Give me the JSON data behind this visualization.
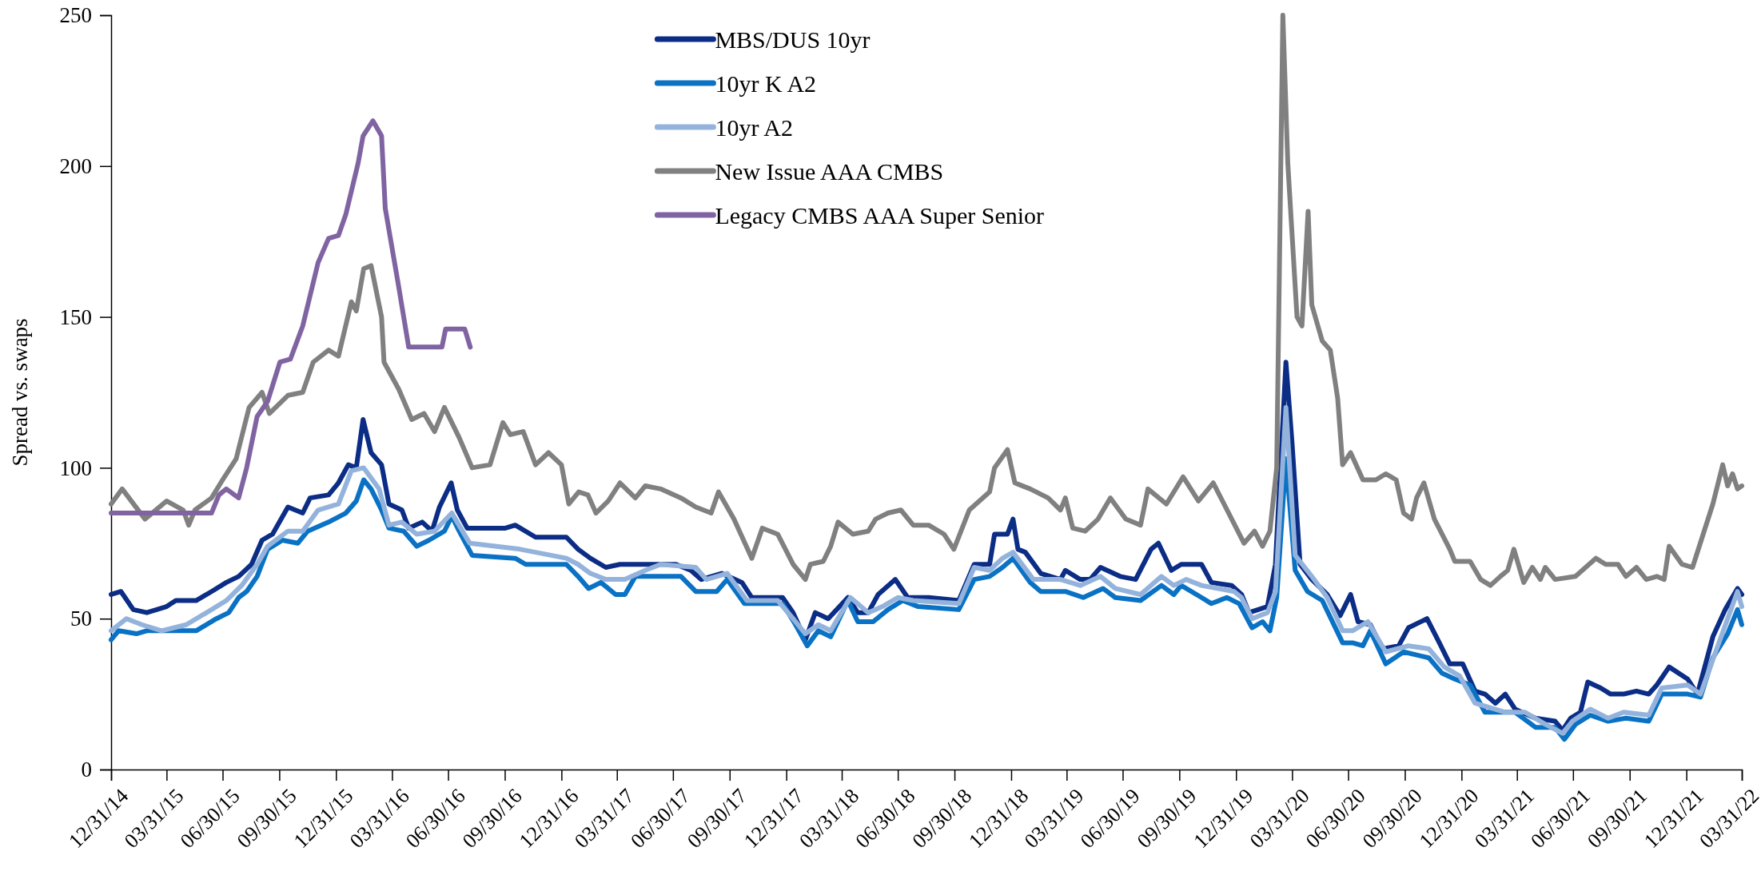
{
  "chart_data": {
    "type": "line",
    "ylabel": "Spread vs. swaps",
    "ylim": [
      0,
      250
    ],
    "yticks": [
      0,
      50,
      100,
      150,
      200,
      250
    ],
    "xlim": [
      "2014-12-31",
      "2022-03-31"
    ],
    "xticks": [
      {
        "value": "2014-12-31",
        "label": "12/31/14"
      },
      {
        "value": "2015-03-31",
        "label": "03/31/15"
      },
      {
        "value": "2015-06-30",
        "label": "06/30/15"
      },
      {
        "value": "2015-09-30",
        "label": "09/30/15"
      },
      {
        "value": "2015-12-31",
        "label": "12/31/15"
      },
      {
        "value": "2016-03-31",
        "label": "03/31/16"
      },
      {
        "value": "2016-06-30",
        "label": "06/30/16"
      },
      {
        "value": "2016-09-30",
        "label": "09/30/16"
      },
      {
        "value": "2016-12-31",
        "label": "12/31/16"
      },
      {
        "value": "2017-03-31",
        "label": "03/31/17"
      },
      {
        "value": "2017-06-30",
        "label": "06/30/17"
      },
      {
        "value": "2017-09-30",
        "label": "09/30/17"
      },
      {
        "value": "2017-12-31",
        "label": "12/31/17"
      },
      {
        "value": "2018-03-31",
        "label": "03/31/18"
      },
      {
        "value": "2018-06-30",
        "label": "06/30/18"
      },
      {
        "value": "2018-09-30",
        "label": "09/30/18"
      },
      {
        "value": "2018-12-31",
        "label": "12/31/18"
      },
      {
        "value": "2019-03-31",
        "label": "03/31/19"
      },
      {
        "value": "2019-06-30",
        "label": "06/30/19"
      },
      {
        "value": "2019-09-30",
        "label": "09/30/19"
      },
      {
        "value": "2019-12-31",
        "label": "12/31/19"
      },
      {
        "value": "2020-03-31",
        "label": "03/31/20"
      },
      {
        "value": "2020-06-30",
        "label": "06/30/20"
      },
      {
        "value": "2020-09-30",
        "label": "09/30/20"
      },
      {
        "value": "2020-12-31",
        "label": "12/31/20"
      },
      {
        "value": "2021-03-31",
        "label": "03/31/21"
      },
      {
        "value": "2021-06-30",
        "label": "06/30/21"
      },
      {
        "value": "2021-09-30",
        "label": "09/30/21"
      },
      {
        "value": "2021-12-31",
        "label": "12/31/21"
      },
      {
        "value": "2022-03-31",
        "label": "03/31/22"
      }
    ],
    "grid": false,
    "legend": "top",
    "marker": "none",
    "line_style": "solid",
    "series": [
      {
        "name": "MBS/DUS 10yr",
        "color": "#0b2d85",
        "x": [
          "2014-12-31",
          "2015-01-16",
          "2015-02-05",
          "2015-02-27",
          "2015-03-31",
          "2015-04-15",
          "2015-05-18",
          "2015-06-12",
          "2015-07-06",
          "2015-07-26",
          "2015-08-16",
          "2015-09-02",
          "2015-09-19",
          "2015-10-14",
          "2015-11-07",
          "2015-11-19",
          "2015-12-19",
          "2016-01-04",
          "2016-01-20",
          "2016-02-02",
          "2016-02-13",
          "2016-02-26",
          "2016-03-14",
          "2016-03-26",
          "2016-04-16",
          "2016-04-27",
          "2016-05-19",
          "2016-06-04",
          "2016-06-16",
          "2016-07-05",
          "2016-07-15",
          "2016-07-31",
          "2016-10-01",
          "2016-10-17",
          "2016-11-19",
          "2017-01-08",
          "2017-01-27",
          "2017-02-16",
          "2017-03-13",
          "2017-04-05",
          "2017-06-02",
          "2017-07-05",
          "2017-07-29",
          "2017-08-15",
          "2017-09-17",
          "2017-10-20",
          "2017-11-05",
          "2017-12-25",
          "2018-01-11",
          "2018-01-31",
          "2018-02-16",
          "2018-03-09",
          "2018-04-10",
          "2018-04-26",
          "2018-05-13",
          "2018-05-29",
          "2018-06-26",
          "2018-07-16",
          "2018-08-19",
          "2018-10-07",
          "2018-11-01",
          "2018-11-26",
          "2018-12-04",
          "2018-12-25",
          "2019-01-03",
          "2019-01-11",
          "2019-01-23",
          "2019-02-17",
          "2019-03-21",
          "2019-03-29",
          "2019-04-22",
          "2019-05-08",
          "2019-05-25",
          "2019-06-26",
          "2019-07-21",
          "2019-08-15",
          "2019-08-27",
          "2019-09-17",
          "2019-10-03",
          "2019-11-05",
          "2019-11-21",
          "2019-12-24",
          "2020-01-09",
          "2020-01-21",
          "2020-02-20",
          "2020-03-04",
          "2020-03-21",
          "2020-03-31",
          "2020-04-13",
          "2020-05-02",
          "2020-05-27",
          "2020-06-17",
          "2020-07-04",
          "2020-07-16",
          "2020-08-05",
          "2020-08-25",
          "2020-09-20",
          "2020-10-06",
          "2020-11-05",
          "2020-11-25",
          "2020-12-12",
          "2021-01-02",
          "2021-01-22",
          "2021-02-07",
          "2021-02-24",
          "2021-03-12",
          "2021-03-28",
          "2021-04-30",
          "2021-06-01",
          "2021-06-13",
          "2021-06-26",
          "2021-07-12",
          "2021-07-24",
          "2021-08-14",
          "2021-08-30",
          "2021-09-20",
          "2021-10-11",
          "2021-10-31",
          "2021-11-13",
          "2021-12-03",
          "2022-01-02",
          "2022-01-18",
          "2022-02-12",
          "2022-03-04",
          "2022-03-24",
          "2022-03-31"
        ],
        "values": [
          58,
          59,
          53,
          52,
          54,
          56,
          56,
          59,
          62,
          64,
          68,
          76,
          78,
          87,
          85,
          90,
          91,
          95,
          101,
          100,
          116,
          105,
          101,
          88,
          86,
          80,
          82,
          79,
          87,
          95,
          86,
          80,
          80,
          81,
          77,
          77,
          73,
          70,
          67,
          68,
          68,
          68,
          66,
          63,
          65,
          62,
          57,
          57,
          52,
          43,
          52,
          50,
          57,
          52,
          52,
          58,
          63,
          57,
          57,
          56,
          68,
          68,
          78,
          78,
          83,
          73,
          72,
          65,
          63,
          66,
          63,
          63,
          67,
          64,
          63,
          73,
          75,
          66,
          68,
          68,
          62,
          61,
          58,
          52,
          54,
          68,
          135,
          108,
          68,
          63,
          58,
          51,
          58,
          49,
          48,
          40,
          41,
          47,
          50,
          42,
          35,
          35,
          26,
          25,
          22,
          25,
          20,
          17,
          16,
          13,
          17,
          19,
          29,
          27,
          25,
          25,
          26,
          25,
          28,
          34,
          30,
          25,
          44,
          53,
          60,
          58
        ]
      },
      {
        "name": "10yr K A2",
        "color": "#0a72c4",
        "x": [
          "2014-12-31",
          "2015-01-12",
          "2015-02-10",
          "2015-02-27",
          "2015-05-18",
          "2015-06-20",
          "2015-07-10",
          "2015-07-26",
          "2015-08-08",
          "2015-08-25",
          "2015-09-11",
          "2015-10-05",
          "2015-10-30",
          "2015-11-15",
          "2015-12-19",
          "2016-01-16",
          "2016-02-02",
          "2016-02-14",
          "2016-02-26",
          "2016-03-14",
          "2016-03-26",
          "2016-04-19",
          "2016-05-10",
          "2016-05-30",
          "2016-06-24",
          "2016-07-06",
          "2016-07-18",
          "2016-08-08",
          "2016-10-17",
          "2016-11-03",
          "2017-01-08",
          "2017-01-27",
          "2017-02-13",
          "2017-03-05",
          "2017-03-29",
          "2017-04-13",
          "2017-04-30",
          "2017-07-13",
          "2017-08-06",
          "2017-09-09",
          "2017-09-26",
          "2017-10-24",
          "2017-12-25",
          "2018-01-15",
          "2018-02-03",
          "2018-02-21",
          "2018-03-13",
          "2018-04-10",
          "2018-04-26",
          "2018-05-21",
          "2018-06-14",
          "2018-07-08",
          "2018-08-02",
          "2018-10-07",
          "2018-11-01",
          "2018-11-26",
          "2018-12-17",
          "2019-01-03",
          "2019-01-31",
          "2019-02-17",
          "2019-03-29",
          "2019-04-27",
          "2019-05-29",
          "2019-06-18",
          "2019-07-29",
          "2019-09-01",
          "2019-09-21",
          "2019-10-03",
          "2019-11-05",
          "2019-11-21",
          "2019-12-16",
          "2020-01-05",
          "2020-01-26",
          "2020-02-12",
          "2020-02-24",
          "2020-03-06",
          "2020-03-21",
          "2020-04-05",
          "2020-04-25",
          "2020-05-19",
          "2020-06-21",
          "2020-07-07",
          "2020-07-24",
          "2020-08-05",
          "2020-08-30",
          "2020-09-28",
          "2020-11-08",
          "2020-11-29",
          "2020-12-20",
          "2021-01-14",
          "2021-02-07",
          "2021-03-28",
          "2021-04-30",
          "2021-06-01",
          "2021-06-16",
          "2021-07-04",
          "2021-07-28",
          "2021-08-26",
          "2021-09-24",
          "2021-10-31",
          "2021-11-21",
          "2022-01-02",
          "2022-01-23",
          "2022-02-12",
          "2022-03-08",
          "2022-03-24",
          "2022-03-31"
        ],
        "values": [
          43,
          46,
          45,
          46,
          46,
          50,
          52,
          57,
          59,
          64,
          73,
          76,
          75,
          79,
          82,
          85,
          89,
          96,
          93,
          86,
          80,
          79,
          74,
          76,
          79,
          84,
          79,
          71,
          70,
          68,
          68,
          64,
          60,
          62,
          58,
          58,
          64,
          64,
          59,
          59,
          63,
          55,
          55,
          48,
          41,
          46,
          44,
          56,
          49,
          49,
          53,
          56,
          54,
          53,
          63,
          64,
          67,
          70,
          62,
          59,
          59,
          57,
          60,
          57,
          56,
          61,
          58,
          61,
          57,
          55,
          57,
          55,
          47,
          49,
          46,
          57,
          103,
          66,
          59,
          56,
          42,
          42,
          41,
          46,
          35,
          39,
          37,
          32,
          30,
          28,
          19,
          19,
          14,
          14,
          10,
          15,
          18,
          16,
          17,
          16,
          25,
          25,
          24,
          37,
          45,
          53,
          48
        ]
      },
      {
        "name": "10yr A2",
        "color": "#93b3dc",
        "x": [
          "2014-12-31",
          "2015-01-25",
          "2015-02-19",
          "2015-03-23",
          "2015-05-02",
          "2015-06-04",
          "2015-07-06",
          "2015-07-31",
          "2015-08-25",
          "2015-09-11",
          "2015-10-14",
          "2015-11-07",
          "2015-12-02",
          "2016-01-04",
          "2016-01-25",
          "2016-02-14",
          "2016-03-10",
          "2016-03-26",
          "2016-04-16",
          "2016-05-10",
          "2016-06-08",
          "2016-07-06",
          "2016-08-04",
          "2016-09-14",
          "2016-10-25",
          "2017-01-08",
          "2017-01-27",
          "2017-02-16",
          "2017-03-13",
          "2017-04-13",
          "2017-05-16",
          "2017-06-10",
          "2017-08-06",
          "2017-08-23",
          "2017-09-26",
          "2017-10-28",
          "2017-12-17",
          "2018-01-11",
          "2018-01-31",
          "2018-02-21",
          "2018-03-13",
          "2018-04-14",
          "2018-05-13",
          "2018-06-05",
          "2018-06-30",
          "2018-07-25",
          "2018-10-07",
          "2018-11-01",
          "2018-11-26",
          "2018-12-17",
          "2019-01-03",
          "2019-02-05",
          "2019-03-21",
          "2019-04-22",
          "2019-05-25",
          "2019-06-18",
          "2019-07-29",
          "2019-09-01",
          "2019-09-21",
          "2019-10-11",
          "2019-11-05",
          "2019-12-28",
          "2020-01-09",
          "2020-01-26",
          "2020-02-20",
          "2020-03-04",
          "2020-03-21",
          "2020-04-05",
          "2020-05-02",
          "2020-05-27",
          "2020-06-21",
          "2020-07-07",
          "2020-08-01",
          "2020-08-30",
          "2020-10-06",
          "2020-11-08",
          "2020-12-03",
          "2020-12-28",
          "2021-01-22",
          "2021-03-12",
          "2021-04-13",
          "2021-05-16",
          "2021-06-13",
          "2021-06-29",
          "2021-07-28",
          "2021-08-26",
          "2021-09-20",
          "2021-10-31",
          "2021-11-21",
          "2022-01-02",
          "2022-01-23",
          "2022-02-20",
          "2022-03-24",
          "2022-03-31"
        ],
        "values": [
          46,
          50,
          48,
          46,
          48,
          52,
          56,
          61,
          68,
          74,
          79,
          79,
          86,
          88,
          99,
          100,
          93,
          81,
          82,
          78,
          79,
          85,
          75,
          74,
          73,
          70,
          68,
          65,
          63,
          63,
          66,
          68,
          67,
          63,
          65,
          56,
          56,
          50,
          45,
          48,
          46,
          57,
          52,
          54,
          57,
          56,
          55,
          67,
          66,
          70,
          72,
          63,
          63,
          61,
          64,
          60,
          58,
          64,
          61,
          63,
          61,
          59,
          57,
          50,
          52,
          59,
          120,
          71,
          64,
          57,
          46,
          46,
          49,
          39,
          41,
          40,
          34,
          31,
          22,
          19,
          19,
          15,
          12,
          16,
          20,
          17,
          19,
          18,
          27,
          28,
          25,
          41,
          59,
          54
        ]
      },
      {
        "name": "New Issue AAA CMBS",
        "color": "#808080",
        "x": [
          "2014-12-31",
          "2015-01-18",
          "2015-02-24",
          "2015-03-31",
          "2015-04-27",
          "2015-05-06",
          "2015-05-16",
          "2015-06-12",
          "2015-06-30",
          "2015-07-22",
          "2015-08-12",
          "2015-09-02",
          "2015-09-14",
          "2015-10-14",
          "2015-11-07",
          "2015-11-24",
          "2015-12-19",
          "2016-01-04",
          "2016-01-25",
          "2016-02-02",
          "2016-02-14",
          "2016-02-26",
          "2016-03-14",
          "2016-03-18",
          "2016-04-11",
          "2016-05-02",
          "2016-05-22",
          "2016-06-08",
          "2016-06-24",
          "2016-07-18",
          "2016-08-08",
          "2016-09-06",
          "2016-09-27",
          "2016-10-09",
          "2016-10-30",
          "2016-11-19",
          "2016-12-10",
          "2016-12-31",
          "2017-01-12",
          "2017-01-28",
          "2017-02-12",
          "2017-02-25",
          "2017-03-17",
          "2017-04-05",
          "2017-04-30",
          "2017-05-16",
          "2017-06-10",
          "2017-07-13",
          "2017-08-06",
          "2017-08-31",
          "2017-09-12",
          "2017-10-07",
          "2017-11-05",
          "2017-11-22",
          "2017-12-17",
          "2018-01-11",
          "2018-01-31",
          "2018-02-08",
          "2018-03-01",
          "2018-03-13",
          "2018-03-25",
          "2018-04-18",
          "2018-05-13",
          "2018-05-25",
          "2018-06-14",
          "2018-07-05",
          "2018-07-25",
          "2018-08-19",
          "2018-09-13",
          "2018-09-29",
          "2018-10-24",
          "2018-11-26",
          "2018-12-04",
          "2018-12-25",
          "2019-01-06",
          "2019-01-31",
          "2019-03-01",
          "2019-03-21",
          "2019-03-29",
          "2019-04-10",
          "2019-04-30",
          "2019-05-21",
          "2019-06-10",
          "2019-07-05",
          "2019-07-29",
          "2019-08-10",
          "2019-09-09",
          "2019-10-06",
          "2019-10-31",
          "2019-11-24",
          "2019-12-24",
          "2020-01-13",
          "2020-01-30",
          "2020-02-12",
          "2020-02-24",
          "2020-03-06",
          "2020-03-16",
          "2020-03-24",
          "2020-04-08",
          "2020-04-16",
          "2020-04-26",
          "2020-05-02",
          "2020-05-19",
          "2020-06-01",
          "2020-06-13",
          "2020-06-21",
          "2020-07-04",
          "2020-07-24",
          "2020-08-14",
          "2020-08-30",
          "2020-09-16",
          "2020-09-28",
          "2020-10-11",
          "2020-10-19",
          "2020-10-31",
          "2020-11-17",
          "2020-12-12",
          "2020-12-20",
          "2021-01-14",
          "2021-01-31",
          "2021-02-16",
          "2021-03-04",
          "2021-03-16",
          "2021-03-26",
          "2021-04-11",
          "2021-04-25",
          "2021-05-08",
          "2021-05-16",
          "2021-06-01",
          "2021-07-04",
          "2021-08-06",
          "2021-08-22",
          "2021-09-11",
          "2021-09-24",
          "2021-10-11",
          "2021-10-27",
          "2021-11-13",
          "2021-11-25",
          "2021-12-03",
          "2021-12-24",
          "2022-01-10",
          "2022-02-12",
          "2022-02-28",
          "2022-03-08",
          "2022-03-16",
          "2022-03-24",
          "2022-03-31"
        ],
        "values": [
          88,
          93,
          83,
          89,
          86,
          81,
          86,
          90,
          96,
          103,
          120,
          125,
          118,
          124,
          125,
          135,
          139,
          137,
          155,
          152,
          166,
          167,
          150,
          135,
          126,
          116,
          118,
          112,
          120,
          110,
          100,
          101,
          115,
          111,
          112,
          101,
          105,
          101,
          88,
          92,
          91,
          85,
          89,
          95,
          90,
          94,
          93,
          90,
          87,
          85,
          92,
          83,
          70,
          80,
          78,
          68,
          63,
          68,
          69,
          74,
          82,
          78,
          79,
          83,
          85,
          86,
          81,
          81,
          78,
          73,
          86,
          92,
          100,
          106,
          95,
          93,
          90,
          86,
          90,
          80,
          79,
          83,
          90,
          83,
          81,
          93,
          88,
          97,
          89,
          95,
          83,
          75,
          79,
          74,
          79,
          100,
          250,
          201,
          150,
          147,
          185,
          154,
          142,
          139,
          123,
          101,
          105,
          96,
          96,
          98,
          96,
          85,
          83,
          90,
          95,
          83,
          73,
          69,
          69,
          63,
          61,
          64,
          66,
          73,
          62,
          67,
          63,
          67,
          63,
          64,
          70,
          68,
          68,
          64,
          67,
          63,
          64,
          63,
          74,
          68,
          67,
          88,
          101,
          94,
          98,
          93,
          94
        ]
      },
      {
        "name": "Legacy CMBS AAA Super Senior",
        "color": "#8064a2",
        "x": [
          "2014-12-31",
          "2015-06-12",
          "2015-06-24",
          "2015-07-06",
          "2015-07-26",
          "2015-08-08",
          "2015-08-25",
          "2015-09-11",
          "2015-10-01",
          "2015-10-18",
          "2015-11-07",
          "2015-12-02",
          "2015-12-19",
          "2016-01-04",
          "2016-01-16",
          "2016-02-05",
          "2016-02-13",
          "2016-02-29",
          "2016-03-14",
          "2016-03-20",
          "2016-04-10",
          "2016-04-27",
          "2016-06-20",
          "2016-06-26",
          "2016-07-27",
          "2016-08-05"
        ],
        "values": [
          85,
          85,
          91,
          93,
          90,
          100,
          117,
          122,
          135,
          136,
          147,
          168,
          176,
          177,
          184,
          201,
          210,
          215,
          210,
          186,
          161,
          140,
          140,
          146,
          146,
          140
        ]
      }
    ]
  }
}
